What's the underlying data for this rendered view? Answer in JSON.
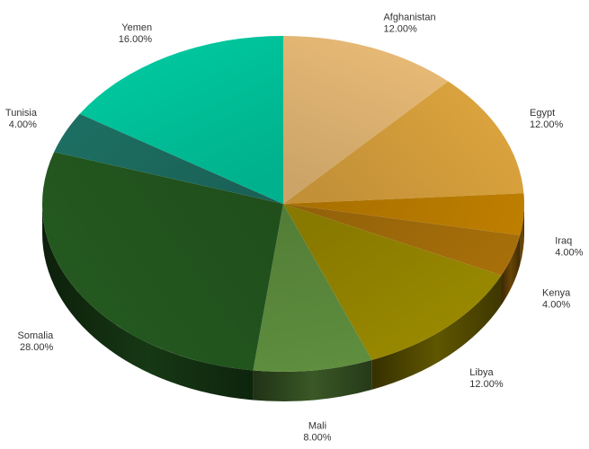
{
  "chart_data": {
    "type": "pie",
    "style": "3d",
    "start_angle_deg": -90,
    "direction": "clockwise",
    "legend": "none",
    "labels": "outside",
    "slices": [
      {
        "name": "Afghanistan",
        "value": 12.0,
        "label": "12.00%",
        "color": "#E8BA76"
      },
      {
        "name": "Egypt",
        "value": 12.0,
        "label": "12.00%",
        "color": "#DDA43E"
      },
      {
        "name": "Iraq",
        "value": 4.0,
        "label": "4.00%",
        "color": "#BE7E00"
      },
      {
        "name": "Kenya",
        "value": 4.0,
        "label": "4.00%",
        "color": "#A76F0A"
      },
      {
        "name": "Libya",
        "value": 12.0,
        "label": "12.00%",
        "color": "#9A8A00"
      },
      {
        "name": "Mali",
        "value": 8.0,
        "label": "8.00%",
        "color": "#5E8E3E"
      },
      {
        "name": "Somalia",
        "value": 28.0,
        "label": "28.00%",
        "color": "#245A20"
      },
      {
        "name": "Tunisia",
        "value": 4.0,
        "label": "4.00%",
        "color": "#1D6E62"
      },
      {
        "name": "Yemen",
        "value": 16.0,
        "label": "16.00%",
        "color": "#00C9A0"
      }
    ]
  }
}
